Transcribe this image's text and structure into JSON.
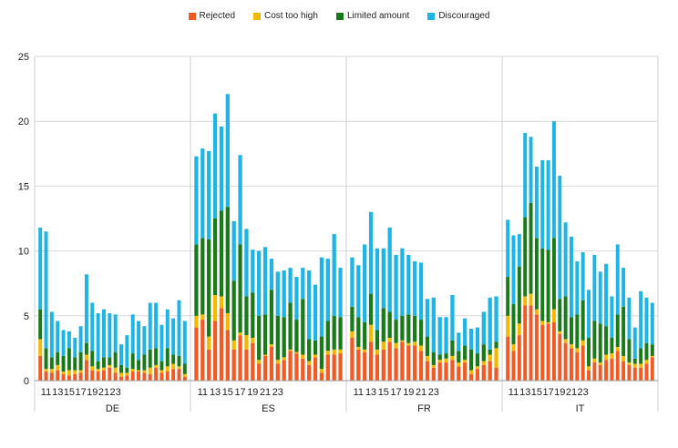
{
  "chart_data": {
    "type": "bar",
    "stacked": true,
    "title": "",
    "xlabel": "",
    "ylabel": "",
    "ylim": [
      0,
      25
    ],
    "yticks": [
      0,
      5,
      10,
      15,
      20,
      25
    ],
    "grid": "horizontal",
    "legend_position": "top-center",
    "x_tick_labels": [
      "11",
      "13",
      "15",
      "17",
      "19",
      "21",
      "23"
    ],
    "series": [
      {
        "name": "Rejected",
        "color": "#f15a24"
      },
      {
        "name": "Cost too high",
        "color": "#f5b800"
      },
      {
        "name": "Limited amount",
        "color": "#1a7a1a"
      },
      {
        "name": "Discouraged",
        "color": "#1eb4e6"
      }
    ],
    "groups": [
      {
        "name": "DE",
        "bars": [
          [
            1.9,
            1.3,
            2.3,
            6.3
          ],
          [
            0.7,
            0.2,
            1.6,
            9.0
          ],
          [
            0.6,
            0.3,
            0.9,
            3.5
          ],
          [
            0.8,
            0.4,
            1.0,
            2.4
          ],
          [
            0.5,
            0.2,
            1.2,
            2.0
          ],
          [
            0.4,
            0.4,
            1.7,
            1.3
          ],
          [
            0.5,
            0.3,
            1.0,
            1.5
          ],
          [
            0.6,
            0.2,
            1.4,
            2.0
          ],
          [
            1.6,
            0.4,
            0.9,
            5.3
          ],
          [
            0.8,
            0.3,
            1.2,
            3.7
          ],
          [
            0.7,
            0.2,
            0.6,
            3.7
          ],
          [
            0.8,
            0.2,
            0.8,
            3.7
          ],
          [
            1.0,
            0.2,
            0.6,
            3.4
          ],
          [
            0.6,
            0.4,
            1.2,
            2.9
          ],
          [
            0.3,
            0.3,
            0.6,
            1.6
          ],
          [
            0.4,
            0.2,
            0.4,
            2.5
          ],
          [
            0.7,
            0.2,
            1.2,
            3.0
          ],
          [
            0.7,
            0.1,
            0.8,
            3.0
          ],
          [
            0.6,
            0.2,
            1.2,
            2.2
          ],
          [
            0.5,
            0.5,
            1.4,
            3.6
          ],
          [
            1.0,
            0.2,
            1.3,
            3.5
          ],
          [
            0.6,
            0.2,
            0.7,
            2.8
          ],
          [
            0.7,
            0.4,
            1.4,
            3.0
          ],
          [
            0.9,
            0.4,
            0.7,
            2.8
          ],
          [
            0.9,
            0.2,
            0.8,
            4.3
          ],
          [
            0.3,
            0.2,
            0.8,
            3.3
          ]
        ]
      },
      {
        "name": "ES",
        "bars": [
          [
            4.1,
            0.9,
            5.5,
            6.8
          ],
          [
            4.7,
            0.4,
            5.9,
            6.9
          ],
          [
            2.4,
            1.0,
            7.5,
            6.8
          ],
          [
            4.6,
            2.0,
            5.9,
            8.1
          ],
          [
            5.6,
            0.9,
            6.6,
            6.5
          ],
          [
            3.9,
            1.3,
            8.2,
            8.7
          ],
          [
            2.4,
            0.7,
            4.6,
            4.6
          ],
          [
            3.5,
            0.2,
            6.8,
            6.9
          ],
          [
            2.4,
            1.1,
            3.0,
            5.2
          ],
          [
            2.9,
            0.4,
            3.5,
            3.3
          ],
          [
            1.3,
            0.3,
            3.4,
            5.0
          ],
          [
            1.9,
            0.1,
            3.1,
            5.2
          ],
          [
            2.6,
            0.2,
            4.2,
            2.4
          ],
          [
            1.3,
            0.3,
            3.4,
            3.4
          ],
          [
            1.6,
            0.2,
            3.1,
            3.6
          ],
          [
            2.3,
            0.1,
            3.6,
            2.7
          ],
          [
            2.1,
            0.1,
            2.5,
            3.3
          ],
          [
            1.7,
            0.3,
            4.3,
            2.4
          ],
          [
            1.2,
            0.3,
            1.7,
            5.3
          ],
          [
            1.8,
            0.2,
            1.1,
            4.3
          ],
          [
            0.6,
            0.3,
            2.5,
            6.1
          ],
          [
            2.0,
            0.3,
            2.3,
            4.8
          ],
          [
            2.0,
            0.4,
            2.6,
            6.3
          ],
          [
            2.1,
            0.3,
            2.5,
            3.8
          ]
        ]
      },
      {
        "name": "FR",
        "bars": [
          [
            3.3,
            0.5,
            1.9,
            3.8
          ],
          [
            2.4,
            0.2,
            2.3,
            4.0
          ],
          [
            2.2,
            0.2,
            2.1,
            6.0
          ],
          [
            3.0,
            1.3,
            2.4,
            6.3
          ],
          [
            2.0,
            0.4,
            1.5,
            6.3
          ],
          [
            2.4,
            0.6,
            2.6,
            4.6
          ],
          [
            3.0,
            0.3,
            2.0,
            6.5
          ],
          [
            2.5,
            0.4,
            1.8,
            5.0
          ],
          [
            3.0,
            0.1,
            1.9,
            5.2
          ],
          [
            2.7,
            0.2,
            2.2,
            4.6
          ],
          [
            2.7,
            0.3,
            2.0,
            4.2
          ],
          [
            2.3,
            0.4,
            2.0,
            4.4
          ],
          [
            1.5,
            0.4,
            1.5,
            2.9
          ],
          [
            1.0,
            0.2,
            1.0,
            4.2
          ],
          [
            1.4,
            0.2,
            0.4,
            2.9
          ],
          [
            1.4,
            0.3,
            0.4,
            2.8
          ],
          [
            1.6,
            0.3,
            1.2,
            3.5
          ],
          [
            1.1,
            0.3,
            0.9,
            1.4
          ],
          [
            1.4,
            0.2,
            1.1,
            2.1
          ],
          [
            0.5,
            0.3,
            1.6,
            1.6
          ],
          [
            0.9,
            0.2,
            1.0,
            2.0
          ],
          [
            1.2,
            0.3,
            1.3,
            2.5
          ],
          [
            1.5,
            0.5,
            0.4,
            4.0
          ],
          [
            1.0,
            1.5,
            0.5,
            3.5
          ]
        ]
      },
      {
        "name": "IT",
        "bars": [
          [
            3.4,
            1.6,
            3.0,
            4.4
          ],
          [
            2.3,
            0.5,
            3.1,
            5.3
          ],
          [
            3.5,
            0.9,
            4.4,
            2.5
          ],
          [
            5.8,
            0.7,
            6.1,
            6.5
          ],
          [
            5.8,
            0.9,
            7.0,
            5.1
          ],
          [
            5.1,
            0.4,
            5.5,
            5.5
          ],
          [
            4.3,
            0.3,
            5.6,
            6.8
          ],
          [
            4.4,
            0.1,
            5.6,
            6.9
          ],
          [
            4.5,
            1.0,
            5.5,
            9.0
          ],
          [
            3.6,
            0.2,
            2.5,
            9.5
          ],
          [
            2.9,
            0.3,
            3.3,
            5.7
          ],
          [
            2.5,
            0.3,
            2.1,
            6.2
          ],
          [
            2.2,
            0.3,
            2.6,
            4.1
          ],
          [
            2.7,
            0.4,
            3.1,
            3.7
          ],
          [
            0.8,
            0.3,
            2.2,
            3.7
          ],
          [
            1.4,
            0.3,
            2.9,
            5.1
          ],
          [
            1.2,
            0.2,
            3.0,
            4.0
          ],
          [
            1.6,
            0.4,
            2.2,
            4.8
          ],
          [
            1.7,
            0.4,
            1.2,
            3.2
          ],
          [
            2.3,
            0.3,
            2.5,
            5.4
          ],
          [
            1.5,
            0.4,
            3.8,
            3.0
          ],
          [
            1.2,
            0.2,
            1.8,
            3.2
          ],
          [
            1.0,
            0.3,
            0.4,
            2.4
          ],
          [
            1.0,
            0.3,
            1.2,
            4.4
          ],
          [
            1.3,
            0.3,
            1.3,
            3.5
          ],
          [
            1.8,
            0.1,
            0.9,
            3.2
          ]
        ]
      }
    ]
  }
}
